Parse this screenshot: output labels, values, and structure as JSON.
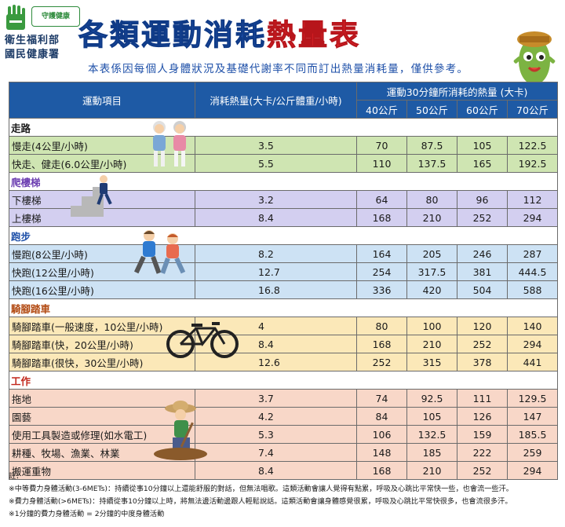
{
  "header": {
    "badge": "守護健康",
    "ministry_line1": "衛生福利部",
    "ministry_line2": "國民健康署",
    "title_part1": "各類運動消耗",
    "title_part2": "熱量表",
    "subtitle": "本表係因每個人身體狀況及基礎代謝率不同而訂出熱量消耗量，僅供參考。"
  },
  "table": {
    "headers": {
      "item": "運動項目",
      "kcal": "消耗熱量(大卡/公斤體重/小時)",
      "group": "運動30分鐘所消耗的熱量 (大卡)",
      "weights": [
        "40公斤",
        "50公斤",
        "60公斤",
        "70公斤"
      ]
    },
    "categories": [
      {
        "name": "走路",
        "rows": [
          {
            "name": "慢走(4公里/小時)",
            "kcal": "3.5",
            "v": [
              "70",
              "87.5",
              "105",
              "122.5"
            ]
          },
          {
            "name": "快走、健走(6.0公里/小時)",
            "kcal": "5.5",
            "v": [
              "110",
              "137.5",
              "165",
              "192.5"
            ]
          }
        ]
      },
      {
        "name": "爬樓梯",
        "rows": [
          {
            "name": "下樓梯",
            "kcal": "3.2",
            "v": [
              "64",
              "80",
              "96",
              "112"
            ]
          },
          {
            "name": "上樓梯",
            "kcal": "8.4",
            "v": [
              "168",
              "210",
              "252",
              "294"
            ]
          }
        ]
      },
      {
        "name": "跑步",
        "rows": [
          {
            "name": "慢跑(8公里/小時)",
            "kcal": "8.2",
            "v": [
              "164",
              "205",
              "246",
              "287"
            ]
          },
          {
            "name": "快跑(12公里/小時)",
            "kcal": "12.7",
            "v": [
              "254",
              "317.5",
              "381",
              "444.5"
            ]
          },
          {
            "name": "快跑(16公里/小時)",
            "kcal": "16.8",
            "v": [
              "336",
              "420",
              "504",
              "588"
            ]
          }
        ]
      },
      {
        "name": "騎腳踏車",
        "rows": [
          {
            "name": "騎腳踏車(一般速度，10公里/小時)",
            "kcal": "4",
            "v": [
              "80",
              "100",
              "120",
              "140"
            ]
          },
          {
            "name": "騎腳踏車(快，20公里/小時)",
            "kcal": "8.4",
            "v": [
              "168",
              "210",
              "252",
              "294"
            ]
          },
          {
            "name": "騎腳踏車(很快，30公里/小時)",
            "kcal": "12.6",
            "v": [
              "252",
              "315",
              "378",
              "441"
            ]
          }
        ]
      },
      {
        "name": "工作",
        "rows": [
          {
            "name": "拖地",
            "kcal": "3.7",
            "v": [
              "74",
              "92.5",
              "111",
              "129.5"
            ]
          },
          {
            "name": "園藝",
            "kcal": "4.2",
            "v": [
              "84",
              "105",
              "126",
              "147"
            ]
          },
          {
            "name": "使用工具製造或修理(如水電工)",
            "kcal": "5.3",
            "v": [
              "106",
              "132.5",
              "159",
              "185.5"
            ]
          },
          {
            "name": "耕種、牧場、漁業、林業",
            "kcal": "7.4",
            "v": [
              "148",
              "185",
              "222",
              "259"
            ]
          },
          {
            "name": "搬運重物",
            "kcal": "8.4",
            "v": [
              "168",
              "210",
              "252",
              "294"
            ]
          }
        ]
      }
    ]
  },
  "notes": {
    "heading": "註：",
    "note1": "※中等費力身體活動(3-6METs)：持續從事10分鐘以上還能舒服的對話，但無法唱歌。這類活動會讓人覺得有點累，呼吸及心跳比平常快一些，也會流一些汗。",
    "note2": "※費力身體活動(>6METs)：持續從事10分鐘以上時，將無法邊活動邊跟人輕鬆說話。這類活動會讓身體感覺很累，呼吸及心跳比平常快很多，也會流很多汗。",
    "note3": "※1分鐘的費力身體活動 = 2分鐘的中度身體活動"
  },
  "colors": {
    "header_blue": "#1e5aa5",
    "title_red": "#e8262c",
    "walk_bg": "#cfe5b2",
    "stairs_bg": "#d3cff0",
    "run_bg": "#cde2f4",
    "bike_bg": "#fbe8b8",
    "work_bg": "#f8d7c8"
  },
  "icons": [
    "hand-logo-icon",
    "elderly-walkers-illustration",
    "stair-climber-illustration",
    "runners-illustration",
    "bicycle-illustration",
    "farmer-illustration",
    "mascot-illustration"
  ]
}
